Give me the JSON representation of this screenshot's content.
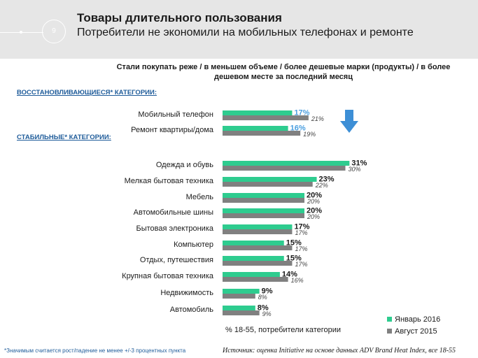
{
  "header": {
    "page_number": "9",
    "title": "Товары длительного пользования",
    "subtitle": "Потребители не экономили на мобильных телефонах и ремонте"
  },
  "colors": {
    "jan2016": "#2ecc8f",
    "aug2015": "#808080",
    "highlight": "#4a9fe0",
    "section": "#1f5c9a",
    "arrow": "#3d8fd6"
  },
  "sections": {
    "recovering": "ВОССТАНОВЛИВАЮЩИЕСЯ* КАТЕГОРИИ:",
    "stable": "СТАБИЛЬНЫЕ* КАТЕГОРИИ:"
  },
  "chart_data": {
    "type": "bar",
    "orientation": "horizontal",
    "title": "Стали покупать реже / в меньшем объеме / более дешевые марки (продукты) / в более дешевом месте за последний месяц",
    "unit": "%",
    "categories": [
      "Мобильный телефон",
      "Ремонт квартиры/дома",
      "Одежда и обувь",
      "Мелкая бытовая техника",
      "Мебель",
      "Автомобильные шины",
      "Бытовая электроника",
      "Компьютер",
      "Отдых, путешествия",
      "Крупная бытовая техника",
      "Недвижимость",
      "Автомобиль"
    ],
    "series": [
      {
        "name": "Январь 2016",
        "values": [
          17,
          16,
          31,
          23,
          20,
          20,
          17,
          15,
          15,
          14,
          9,
          8
        ]
      },
      {
        "name": "Август 2015",
        "values": [
          21,
          19,
          30,
          22,
          20,
          20,
          17,
          17,
          17,
          16,
          8,
          9
        ]
      }
    ],
    "highlighted_categories": [
      "Мобильный телефон",
      "Ремонт квартиры/дома"
    ],
    "xlim": [
      0,
      35
    ],
    "legend_position": "bottom-right"
  },
  "unit_note": "% 18-55, потребители категории",
  "footnote": "*Значимым считается рост/падение не менее +/-3 процентных пункта",
  "source": "Источник: оценка Initiative на основе данных ADV Brand Heat Index, все 18-55"
}
